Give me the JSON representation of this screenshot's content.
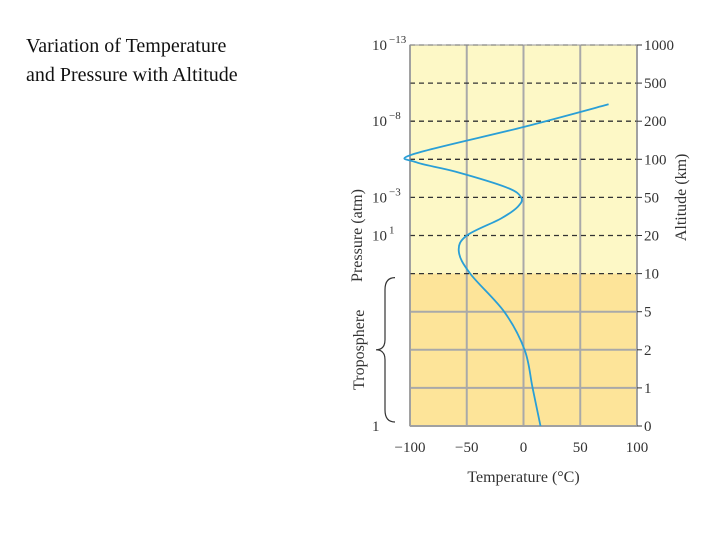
{
  "slide": {
    "title_lines": [
      "Variation of Temperature",
      "and Pressure with Altitude"
    ]
  },
  "colors": {
    "upper_band": "#fdf8c6",
    "troposphere_band": "#fde499",
    "grid": "#a9a9a9",
    "curve": "#2a9fd6",
    "frame": "#999999"
  },
  "chart_data": {
    "type": "line",
    "title": "",
    "xlabel": "Temperature (°C)",
    "ylabel_left": "Pressure (atm)",
    "ylabel_right": "Altitude (km)",
    "region_label": "Troposphere",
    "xlim": [
      -100,
      100
    ],
    "x_ticks": [
      {
        "value": -100,
        "label": "−100"
      },
      {
        "value": -50,
        "label": "−50"
      },
      {
        "value": 0,
        "label": "0"
      },
      {
        "value": 50,
        "label": "50"
      },
      {
        "value": 100,
        "label": "100"
      }
    ],
    "altitude_ticks_km": [
      0,
      1,
      2,
      5,
      10,
      20,
      50,
      100,
      200,
      500,
      1000
    ],
    "dashed_altitudes_km": [
      10,
      20,
      50,
      100,
      200,
      500,
      1000
    ],
    "troposphere_top_km": 10,
    "pressure_labels": [
      {
        "base": "10",
        "exp": "−13",
        "altitude_km": 1000
      },
      {
        "base": "10",
        "exp": "−8",
        "altitude_km": 200
      },
      {
        "base": "10",
        "exp": "−3",
        "altitude_km": 50
      },
      {
        "base": "10",
        "exp": "1",
        "altitude_km": 20
      },
      {
        "base": "1",
        "exp": "",
        "altitude_km": 0
      }
    ],
    "series": [
      {
        "points": [
          {
            "t": 15,
            "alt": 0
          },
          {
            "t": 8,
            "alt": 1
          },
          {
            "t": 1,
            "alt": 2
          },
          {
            "t": -17,
            "alt": 5
          },
          {
            "t": -47,
            "alt": 10
          },
          {
            "t": -57,
            "alt": 15
          },
          {
            "t": -50,
            "alt": 20
          },
          {
            "t": -20,
            "alt": 30
          },
          {
            "t": -5,
            "alt": 40
          },
          {
            "t": -2,
            "alt": 50
          },
          {
            "t": -15,
            "alt": 60
          },
          {
            "t": -60,
            "alt": 80
          },
          {
            "t": -95,
            "alt": 95
          },
          {
            "t": -97,
            "alt": 110
          },
          {
            "t": 0,
            "alt": 180
          },
          {
            "t": 75,
            "alt": 300
          }
        ]
      }
    ]
  }
}
